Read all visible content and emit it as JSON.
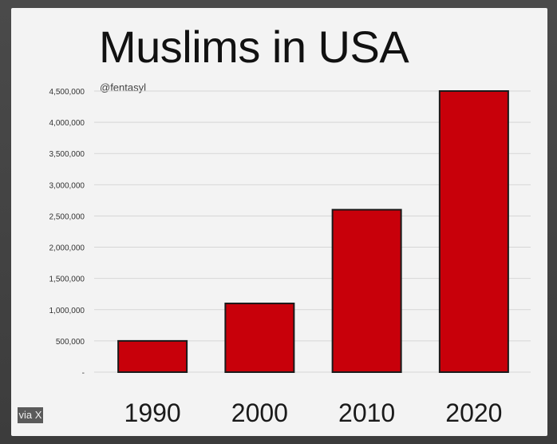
{
  "overlay": {
    "via_label": "via X"
  },
  "chart_data": {
    "type": "bar",
    "title": "Muslims in USA",
    "watermark": "@fentasyl",
    "categories": [
      "1990",
      "2000",
      "2010",
      "2020"
    ],
    "values": [
      500000,
      1100000,
      2600000,
      4500000
    ],
    "ylim": [
      0,
      4500000
    ],
    "yticks": [
      0,
      500000,
      1000000,
      1500000,
      2000000,
      2500000,
      3000000,
      3500000,
      4000000,
      4500000
    ],
    "ytick_labels": [
      "-",
      "500,000",
      "1,000,000",
      "1,500,000",
      "2,000,000",
      "2,500,000",
      "3,000,000",
      "3,500,000",
      "4,000,000",
      "4,500,000"
    ],
    "xlabel": "",
    "ylabel": "",
    "grid": true,
    "legend": "none",
    "bar_color": "#c8000a",
    "bar_edge_color": "#1a1a1a",
    "grid_color": "#d6d6d6"
  }
}
